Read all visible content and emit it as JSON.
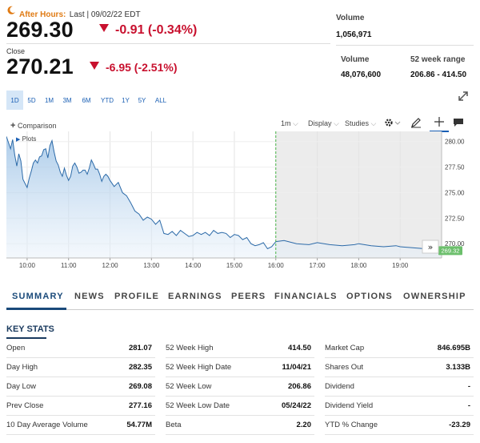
{
  "header": {
    "after_hours_label": "After Hours:",
    "after_hours_meta": "Last | 09/02/22 EDT",
    "after_hours_price": "269.30",
    "after_hours_change": "-0.91 (-0.34%)",
    "volume_label": "Volume",
    "after_hours_volume": "1,056,971",
    "close_label": "Close",
    "close_price": "270.21",
    "close_change": "-6.95 (-2.51%)",
    "close_volume_label": "Volume",
    "close_volume": "48,076,600",
    "week52_label": "52 week range",
    "week52_range": "206.86 - 414.50"
  },
  "ranges": [
    "1D",
    "5D",
    "1M",
    "3M",
    "6M",
    "YTD",
    "1Y",
    "5Y",
    "ALL"
  ],
  "toolbar": {
    "comparison": "Comparison",
    "plots": "Plots",
    "interval": "1m",
    "display": "Display",
    "studies": "Studies"
  },
  "chart_data": {
    "type": "area",
    "x_ticks": [
      "10:00",
      "11:00",
      "12:00",
      "13:00",
      "14:00",
      "15:00",
      "16:00",
      "17:00",
      "18:00",
      "19:00"
    ],
    "y_ticks": [
      "280.00",
      "277.50",
      "275.00",
      "272.50",
      "270.00"
    ],
    "ylim": [
      268.6,
      281.0
    ],
    "last_price_label": "269.32",
    "after_hours_start": "16:00",
    "series": [
      {
        "x": [
          9.5,
          9.55,
          9.6,
          9.65,
          9.7,
          9.75,
          9.8,
          9.85,
          9.9,
          9.95,
          10.0,
          10.05,
          10.1,
          10.15,
          10.2,
          10.25,
          10.3,
          10.35,
          10.4,
          10.45,
          10.5,
          10.55,
          10.6,
          10.65,
          10.7,
          10.75,
          10.8,
          10.85,
          10.9,
          10.95,
          11.0,
          11.05,
          11.1,
          11.15,
          11.2,
          11.25,
          11.3,
          11.35,
          11.4,
          11.45,
          11.5,
          11.55,
          11.6,
          11.65,
          11.7,
          11.75,
          11.8,
          11.85,
          11.9,
          11.95,
          12.0,
          12.1,
          12.2,
          12.3,
          12.4,
          12.5,
          12.6,
          12.7,
          12.8,
          12.9,
          13.0,
          13.1,
          13.2,
          13.3,
          13.4,
          13.5,
          13.6,
          13.7,
          13.8,
          13.9,
          14.0,
          14.1,
          14.2,
          14.3,
          14.4,
          14.5,
          14.6,
          14.7,
          14.8,
          14.9,
          15.0,
          15.1,
          15.2,
          15.3,
          15.4,
          15.5,
          15.6,
          15.7,
          15.8,
          15.9,
          16.0,
          16.2,
          16.5,
          16.8,
          17.0,
          17.3,
          17.6,
          17.9,
          18.0,
          18.3,
          18.6,
          18.9,
          19.0,
          19.3,
          19.6,
          19.9,
          20.0
        ],
        "y": [
          280.5,
          279.9,
          279.3,
          280.2,
          278.7,
          277.6,
          278.8,
          278.1,
          276.3,
          275.9,
          275.5,
          276.4,
          277.1,
          277.9,
          278.2,
          277.9,
          278.5,
          278.6,
          279.2,
          279.3,
          278.4,
          279.6,
          280.1,
          279.0,
          278.1,
          277.7,
          277.0,
          276.6,
          277.4,
          276.7,
          276.2,
          276.6,
          277.6,
          277.9,
          277.5,
          276.9,
          277.0,
          277.2,
          277.2,
          276.8,
          277.4,
          278.2,
          277.8,
          277.3,
          277.3,
          276.8,
          276.1,
          276.6,
          276.8,
          276.6,
          276.2,
          275.6,
          276.0,
          275.0,
          274.7,
          274.0,
          273.2,
          272.9,
          272.3,
          272.6,
          272.4,
          271.9,
          272.3,
          271.0,
          270.9,
          271.2,
          270.8,
          271.3,
          271.0,
          270.7,
          270.8,
          271.1,
          270.9,
          271.1,
          270.8,
          271.3,
          271.0,
          271.1,
          271.0,
          270.6,
          270.9,
          270.8,
          270.4,
          270.6,
          270.0,
          269.8,
          269.9,
          270.1,
          269.5,
          269.7,
          270.2,
          270.3,
          270.0,
          269.9,
          270.1,
          269.9,
          269.8,
          269.9,
          270.0,
          269.8,
          269.7,
          269.8,
          269.7,
          269.6,
          269.5,
          269.4,
          269.3
        ]
      }
    ]
  },
  "tabs": [
    "SUMMARY",
    "NEWS",
    "PROFILE",
    "EARNINGS",
    "PEERS",
    "FINANCIALS",
    "OPTIONS",
    "OWNERSHIP"
  ],
  "key_stats_title": "KEY STATS",
  "stats": [
    [
      {
        "k": "Open",
        "v": "281.07"
      },
      {
        "k": "Day High",
        "v": "282.35"
      },
      {
        "k": "Day Low",
        "v": "269.08"
      },
      {
        "k": "Prev Close",
        "v": "277.16"
      },
      {
        "k": "10 Day Average Volume",
        "v": "54.77M"
      }
    ],
    [
      {
        "k": "52 Week High",
        "v": "414.50"
      },
      {
        "k": "52 Week High Date",
        "v": "11/04/21"
      },
      {
        "k": "52 Week Low",
        "v": "206.86"
      },
      {
        "k": "52 Week Low Date",
        "v": "05/24/22"
      },
      {
        "k": "Beta",
        "v": "2.20"
      }
    ],
    [
      {
        "k": "Market Cap",
        "v": "846.695B"
      },
      {
        "k": "Shares Out",
        "v": "3.133B"
      },
      {
        "k": "Dividend",
        "v": "-"
      },
      {
        "k": "Dividend Yield",
        "v": "-"
      },
      {
        "k": "YTD % Change",
        "v": "-23.29"
      }
    ]
  ],
  "colors": {
    "accent": "#1a5fb4",
    "negative": "#c8102e",
    "after_hours": "#e07b14",
    "last_badge": "#6cbf6c"
  }
}
